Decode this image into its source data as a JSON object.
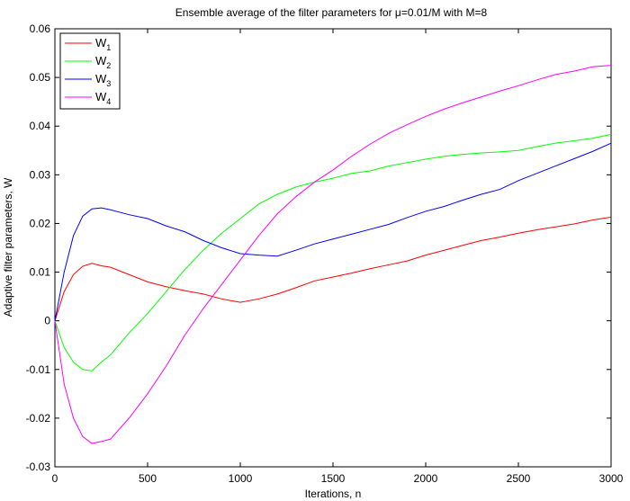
{
  "chart_data": {
    "type": "line",
    "title": "Ensemble average of the filter parameters for μ=0.01/M with M=8",
    "xlabel": "Iterations, n",
    "ylabel": "Adaptive filter parameters, W",
    "xlim": [
      0,
      3000
    ],
    "ylim": [
      -0.03,
      0.06
    ],
    "xticks": [
      0,
      500,
      1000,
      1500,
      2000,
      2500,
      3000
    ],
    "yticks": [
      -0.03,
      -0.02,
      -0.01,
      0,
      0.01,
      0.02,
      0.03,
      0.04,
      0.05,
      0.06
    ],
    "xtick_labels": [
      "0",
      "500",
      "1000",
      "1500",
      "2000",
      "2500",
      "3000"
    ],
    "ytick_labels": [
      "-0.03",
      "-0.02",
      "-0.01",
      "0",
      "0.01",
      "0.02",
      "0.03",
      "0.04",
      "0.05",
      "0.06"
    ],
    "grid": false,
    "legend_position": "top-left",
    "series": [
      {
        "name": "W1",
        "base": "W",
        "sub": "1",
        "color": "#ff0000",
        "x": [
          0,
          50,
          100,
          150,
          200,
          250,
          300,
          400,
          500,
          600,
          700,
          800,
          900,
          1000,
          1100,
          1200,
          1300,
          1400,
          1500,
          1600,
          1700,
          1800,
          1900,
          2000,
          2100,
          2200,
          2300,
          2400,
          2500,
          2600,
          2700,
          2800,
          2900,
          3000
        ],
        "y": [
          0,
          0.006,
          0.0095,
          0.0112,
          0.0118,
          0.0113,
          0.011,
          0.0095,
          0.008,
          0.007,
          0.0062,
          0.0055,
          0.0045,
          0.0038,
          0.0045,
          0.0055,
          0.0068,
          0.0082,
          0.009,
          0.0098,
          0.0107,
          0.0115,
          0.0123,
          0.0135,
          0.0145,
          0.0155,
          0.0165,
          0.0172,
          0.018,
          0.0187,
          0.0193,
          0.0199,
          0.0207,
          0.0213
        ]
      },
      {
        "name": "W2",
        "base": "W",
        "sub": "2",
        "color": "#00ff00",
        "x": [
          0,
          50,
          100,
          150,
          200,
          250,
          300,
          400,
          500,
          600,
          700,
          800,
          900,
          1000,
          1100,
          1200,
          1300,
          1400,
          1500,
          1600,
          1700,
          1800,
          1900,
          2000,
          2100,
          2200,
          2300,
          2400,
          2500,
          2600,
          2700,
          2800,
          2900,
          3000
        ],
        "y": [
          0,
          -0.0055,
          -0.0085,
          -0.01,
          -0.0103,
          -0.0085,
          -0.007,
          -0.0025,
          0.0015,
          0.006,
          0.0105,
          0.0145,
          0.018,
          0.021,
          0.024,
          0.026,
          0.0275,
          0.0285,
          0.0293,
          0.0303,
          0.0308,
          0.0318,
          0.0325,
          0.0332,
          0.0338,
          0.0342,
          0.0345,
          0.0347,
          0.035,
          0.0358,
          0.0365,
          0.037,
          0.0375,
          0.0383
        ]
      },
      {
        "name": "W3",
        "base": "W",
        "sub": "3",
        "color": "#0000ff",
        "x": [
          0,
          50,
          100,
          150,
          200,
          250,
          300,
          400,
          500,
          600,
          700,
          800,
          900,
          1000,
          1100,
          1200,
          1300,
          1400,
          1500,
          1600,
          1700,
          1800,
          1900,
          2000,
          2100,
          2200,
          2300,
          2400,
          2500,
          2600,
          2700,
          2800,
          2900,
          3000
        ],
        "y": [
          0,
          0.01,
          0.0175,
          0.0215,
          0.023,
          0.0232,
          0.0228,
          0.0218,
          0.021,
          0.0195,
          0.0183,
          0.0165,
          0.015,
          0.0138,
          0.0135,
          0.0133,
          0.0145,
          0.0158,
          0.0168,
          0.0178,
          0.0188,
          0.0198,
          0.0212,
          0.0225,
          0.0235,
          0.0248,
          0.026,
          0.027,
          0.0288,
          0.0303,
          0.0318,
          0.0333,
          0.0348,
          0.0365
        ]
      },
      {
        "name": "W4",
        "base": "W",
        "sub": "4",
        "color": "#ff00ff",
        "x": [
          0,
          50,
          100,
          150,
          200,
          250,
          300,
          400,
          500,
          600,
          700,
          800,
          900,
          1000,
          1100,
          1200,
          1300,
          1400,
          1500,
          1600,
          1700,
          1800,
          1900,
          2000,
          2100,
          2200,
          2300,
          2400,
          2500,
          2600,
          2700,
          2800,
          2900,
          3000
        ],
        "y": [
          0,
          -0.013,
          -0.02,
          -0.0238,
          -0.0252,
          -0.0248,
          -0.0243,
          -0.02,
          -0.015,
          -0.0093,
          -0.003,
          0.0025,
          0.0075,
          0.0125,
          0.0175,
          0.022,
          0.0255,
          0.0285,
          0.031,
          0.0338,
          0.0363,
          0.0385,
          0.0403,
          0.042,
          0.0435,
          0.0448,
          0.046,
          0.0472,
          0.0483,
          0.0495,
          0.0506,
          0.0513,
          0.0522,
          0.0525
        ]
      }
    ]
  }
}
